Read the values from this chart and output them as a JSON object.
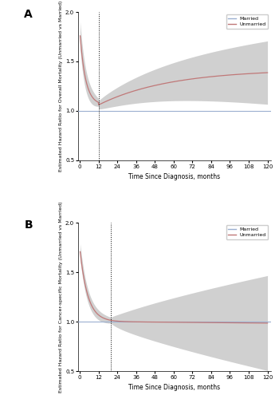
{
  "panel_A": {
    "label": "A",
    "ylabel": "Estimated Hazard Ratio for Overall Mortality (Unmarried vs Married)",
    "xlabel": "Time Since Diagnosis, months",
    "ylim": [
      0.5,
      2.0
    ],
    "yticks": [
      0.5,
      1.0,
      1.5,
      2.0
    ],
    "xticks": [
      0,
      12,
      24,
      36,
      48,
      60,
      72,
      84,
      96,
      108,
      120
    ],
    "ref_line": 1.0,
    "vline": 12,
    "married_color": "#9bafd0",
    "unmarried_color": "#c07878",
    "ci_color": "#aaaaaa",
    "ci_alpha": 0.55
  },
  "panel_B": {
    "label": "B",
    "ylabel": "Estimated Hazard Ratio for Cancer-specific Mortality (Unmarried vs Married)",
    "xlabel": "Time Since Diagnosis, months",
    "ylim": [
      0.5,
      2.0
    ],
    "yticks": [
      0.5,
      1.0,
      1.5,
      2.0
    ],
    "xticks": [
      0,
      12,
      24,
      36,
      48,
      60,
      72,
      84,
      96,
      108,
      120
    ],
    "ref_line": 1.0,
    "vline": 20,
    "married_color": "#9bafd0",
    "unmarried_color": "#c07878",
    "ci_color": "#aaaaaa",
    "ci_alpha": 0.55
  }
}
